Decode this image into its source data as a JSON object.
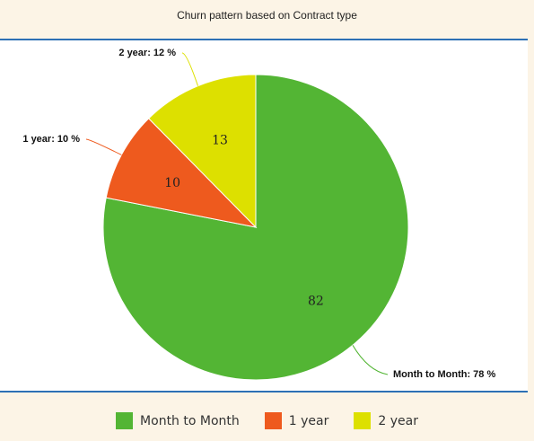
{
  "chart_data": {
    "type": "pie",
    "title": "Churn pattern based on Contract type",
    "slices": [
      {
        "label": "Month to Month",
        "value": 82,
        "percent_label": "Month to Month: 78 %",
        "color": "#53b534"
      },
      {
        "label": "1 year",
        "value": 10,
        "percent_label": "1 year: 10 %",
        "color": "#ee5a1e"
      },
      {
        "label": "2 year",
        "value": 13,
        "percent_label": "2 year: 12 %",
        "color": "#dde000"
      }
    ],
    "legend": {
      "position": "bottom",
      "items": [
        "Month to Month",
        "1 year",
        "2 year"
      ]
    },
    "rule_color": "#2d70b5"
  }
}
